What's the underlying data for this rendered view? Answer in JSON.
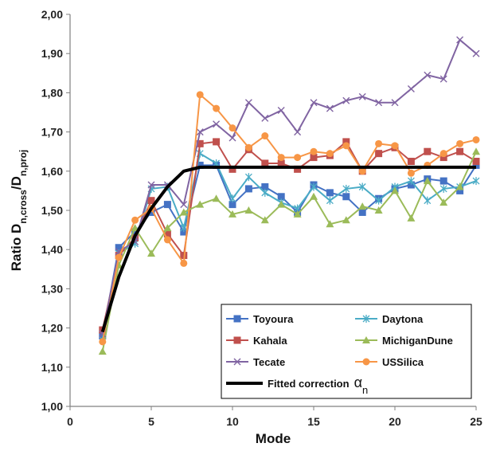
{
  "chart_data": {
    "type": "line",
    "xlabel": "Mode",
    "ylabel_parts": {
      "prefix": "Ratio D",
      "sub1": "n,cross",
      "slash": "/D",
      "sub2": "n,proj"
    },
    "xlim": [
      0,
      25
    ],
    "ylim": [
      1.0,
      2.0
    ],
    "xticks": [
      0,
      5,
      10,
      15,
      20,
      25
    ],
    "xtick_labels": [
      "0",
      "5",
      "10",
      "15",
      "20",
      "25"
    ],
    "yticks": [
      1.0,
      1.1,
      1.2,
      1.3,
      1.4,
      1.5,
      1.6,
      1.7,
      1.8,
      1.9,
      2.0
    ],
    "ytick_labels": [
      "1,00",
      "1,10",
      "1,20",
      "1,30",
      "1,40",
      "1,50",
      "1,60",
      "1,70",
      "1,80",
      "1,90",
      "2,00"
    ],
    "grid": false,
    "legend_position": "bottom-right",
    "x": [
      2,
      3,
      4,
      5,
      6,
      7,
      8,
      9,
      10,
      11,
      12,
      13,
      14,
      15,
      16,
      17,
      18,
      19,
      20,
      21,
      22,
      23,
      24,
      25
    ],
    "series": [
      {
        "name": "Toyoura",
        "color": "#4472C4",
        "marker": "square",
        "values": [
          1.18,
          1.405,
          1.445,
          1.495,
          1.515,
          1.445,
          1.615,
          1.615,
          1.515,
          1.555,
          1.56,
          1.535,
          1.495,
          1.565,
          1.545,
          1.535,
          1.495,
          1.53,
          1.555,
          1.565,
          1.58,
          1.575,
          1.55,
          1.615
        ]
      },
      {
        "name": "Daytona",
        "color": "#4BACC6",
        "marker": "asterisk",
        "values": [
          1.17,
          1.39,
          1.415,
          1.555,
          1.56,
          1.455,
          1.645,
          1.62,
          1.53,
          1.585,
          1.545,
          1.52,
          1.505,
          1.56,
          1.525,
          1.555,
          1.56,
          1.525,
          1.56,
          1.575,
          1.525,
          1.555,
          1.56,
          1.575
        ]
      },
      {
        "name": "Kahala",
        "color": "#C0504D",
        "marker": "square",
        "values": [
          1.195,
          1.385,
          1.43,
          1.525,
          1.44,
          1.385,
          1.67,
          1.675,
          1.605,
          1.655,
          1.62,
          1.62,
          1.605,
          1.635,
          1.64,
          1.675,
          1.6,
          1.645,
          1.66,
          1.625,
          1.65,
          1.635,
          1.65,
          1.625
        ]
      },
      {
        "name": "MichiganDune",
        "color": "#9BBB59",
        "marker": "triangle",
        "values": [
          1.14,
          1.36,
          1.455,
          1.39,
          1.455,
          1.495,
          1.515,
          1.53,
          1.49,
          1.5,
          1.475,
          1.515,
          1.49,
          1.535,
          1.465,
          1.475,
          1.51,
          1.5,
          1.55,
          1.48,
          1.575,
          1.52,
          1.56,
          1.65
        ]
      },
      {
        "name": "Tecate",
        "color": "#8064A2",
        "marker": "x",
        "values": [
          1.185,
          1.395,
          1.42,
          1.565,
          1.565,
          1.515,
          1.7,
          1.72,
          1.685,
          1.775,
          1.735,
          1.755,
          1.7,
          1.775,
          1.76,
          1.78,
          1.79,
          1.775,
          1.775,
          1.81,
          1.845,
          1.835,
          1.935,
          1.9
        ]
      },
      {
        "name": "USSilica",
        "color": "#F79646",
        "marker": "circle",
        "values": [
          1.165,
          1.38,
          1.475,
          1.505,
          1.425,
          1.365,
          1.795,
          1.76,
          1.71,
          1.66,
          1.69,
          1.635,
          1.635,
          1.65,
          1.645,
          1.665,
          1.6,
          1.67,
          1.665,
          1.595,
          1.615,
          1.645,
          1.67,
          1.68
        ]
      },
      {
        "name": "Fitted correction",
        "legend_symbol": "α",
        "legend_symbol_sub": "n",
        "color": "#000000",
        "marker": "none",
        "line_width": 4,
        "values": [
          1.19,
          1.33,
          1.435,
          1.505,
          1.56,
          1.6,
          1.61,
          1.61,
          1.61,
          1.61,
          1.61,
          1.61,
          1.61,
          1.61,
          1.61,
          1.61,
          1.61,
          1.61,
          1.61,
          1.61,
          1.61,
          1.61,
          1.61,
          1.61
        ]
      }
    ]
  }
}
